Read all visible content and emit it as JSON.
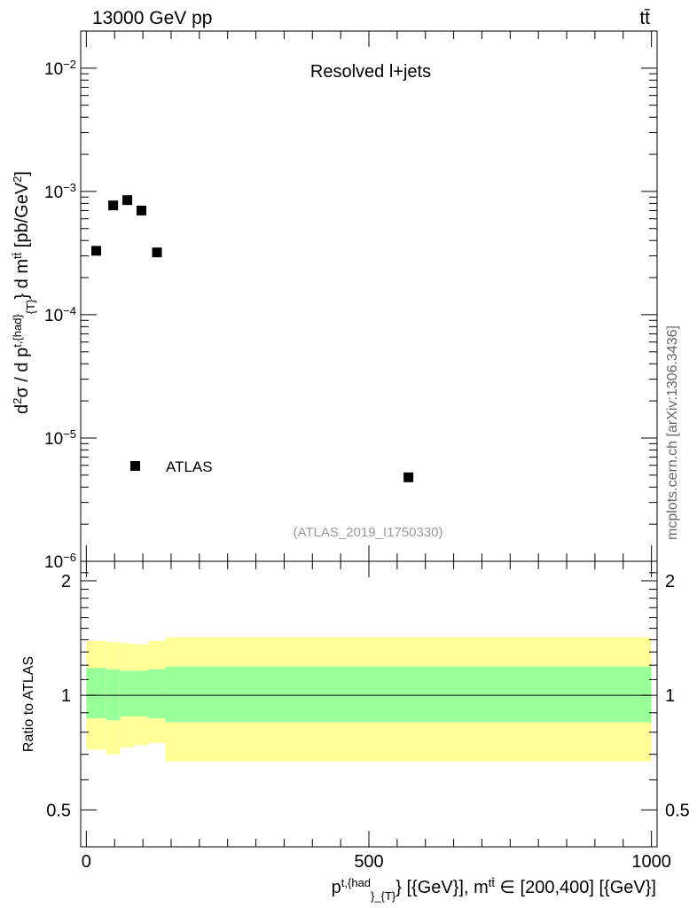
{
  "header": {
    "left_label": "13000 GeV pp",
    "right_label": "tt̄"
  },
  "side_label": "mcplots.cern.ch [arXiv:1306.3436]",
  "chart_data": [
    {
      "type": "scatter",
      "scale": "log",
      "title": "Resolved l+jets",
      "analysis_label": "(ATLAS_2019_I1750330)",
      "ylabel": "d²σ / d p^{t,{had}}_{T} d m^{tt̄} [pb/GeV²]",
      "ylim": [
        1e-06,
        0.02
      ],
      "xlim": [
        -10,
        1010
      ],
      "ytick_labels": [
        {
          "value": 1e-06,
          "base": "10",
          "exp": "−6"
        },
        {
          "value": 1e-05,
          "base": "10",
          "exp": "−5"
        },
        {
          "value": 0.0001,
          "base": "10",
          "exp": "−4"
        },
        {
          "value": 0.001,
          "base": "10",
          "exp": "−3"
        },
        {
          "value": 0.01,
          "base": "10",
          "exp": "−2"
        }
      ],
      "legend": {
        "label": "ATLAS",
        "position": "bottom-left"
      },
      "series": [
        {
          "name": "ATLAS",
          "x": [
            17.5,
            47.5,
            72.5,
            97.5,
            125,
            570
          ],
          "y": [
            0.00033,
            0.00077,
            0.00085,
            0.0007,
            0.00032,
            4.8e-06
          ]
        }
      ]
    },
    {
      "type": "area",
      "ylabel": "Ratio to ATLAS",
      "xlabel": "p^{t,{had}}_{T} [{GeV}], m^{tt̄} ∈ [200,400] [{GeV}]",
      "ylim": [
        0.4,
        2.25
      ],
      "xlim": [
        -10,
        1010
      ],
      "xtick_labels": [
        "0",
        "500",
        "1000"
      ],
      "ytick_labels": [
        "0.5",
        "1",
        "2"
      ],
      "reference_line": 1.0,
      "bins": [
        {
          "x0": 0,
          "x1": 35,
          "yellow": [
            0.72,
            1.39
          ],
          "green": [
            0.87,
            1.18
          ]
        },
        {
          "x0": 35,
          "x1": 60,
          "yellow": [
            0.7,
            1.38
          ],
          "green": [
            0.86,
            1.17
          ]
        },
        {
          "x0": 60,
          "x1": 85,
          "yellow": [
            0.73,
            1.37
          ],
          "green": [
            0.88,
            1.16
          ]
        },
        {
          "x0": 85,
          "x1": 110,
          "yellow": [
            0.74,
            1.36
          ],
          "green": [
            0.88,
            1.16
          ]
        },
        {
          "x0": 110,
          "x1": 140,
          "yellow": [
            0.75,
            1.39
          ],
          "green": [
            0.87,
            1.17
          ]
        },
        {
          "x0": 140,
          "x1": 1000,
          "yellow": [
            0.67,
            1.42
          ],
          "green": [
            0.85,
            1.19
          ]
        }
      ]
    }
  ]
}
